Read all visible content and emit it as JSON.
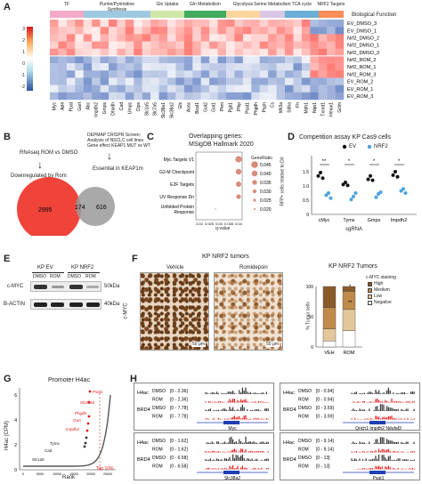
{
  "panels": {
    "a": "A",
    "b": "B",
    "c": "C",
    "d": "D",
    "e": "E",
    "f": "F",
    "g": "G",
    "h": "H"
  },
  "panelA": {
    "categories": [
      {
        "label": "TF",
        "color": "#f4a9c8"
      },
      {
        "label": "Purine/Pyrimidine Synthesis",
        "color": "#9ecae1"
      },
      {
        "label": "Gln Uptake",
        "color": "#cfe8a5"
      },
      {
        "label": "Gln Metabolism",
        "color": "#41ab5d"
      },
      {
        "label": "Glycolysis",
        "color": "#fdd49e"
      },
      {
        "label": "Serine Metabolism",
        "color": "#d9c5e6"
      },
      {
        "label": "TCA cycle",
        "color": "#6baed6"
      },
      {
        "label": "NRF2 Targets",
        "color": "#fc8d59"
      }
    ],
    "function_label": "Biological Function",
    "colorbar_ticks": [
      "3",
      "2",
      "1",
      "0",
      "-1",
      "-2"
    ],
    "rows": [
      "EV_DMSO_3",
      "EV_DMSO_1",
      "Nrf2_DMSO_2",
      "Nrf2_DMSO_1",
      "Nrf2_DMSO_3",
      "Nrf2_ROM_2",
      "Nrf2_ROM_1",
      "Nrf2_ROM_3",
      "EV_ROM_2",
      "EV_ROM_1",
      "EV_ROM_3"
    ],
    "genes": [
      "Myc",
      "Atf4",
      "Ppat",
      "Gart",
      "Atic",
      "Impdh2",
      "Gmps",
      "Dhodh",
      "Cad",
      "Umps",
      "Ctps",
      "Slc1a5",
      "Slc7a5",
      "Slc38a1",
      "Slc38a2",
      "Gls",
      "Asns",
      "Bcat1",
      "Got2",
      "Got1",
      "Pkm",
      "Pgk1",
      "Pfkp",
      "Psat1",
      "Phgdh",
      "Psph",
      "Cs",
      "Idh3a",
      "Sdha",
      "Fh",
      "Mdh1",
      "Nqo1",
      "Txnrd1",
      "Hmox1",
      "Gclm"
    ],
    "col_count": 35
  },
  "panelB": {
    "left_text": "RNAseq ROM vs DMSO",
    "left_sub": "Downregulated by Rom",
    "right_text_1": "DEPMAP CRISPR Screen:",
    "right_text_2": "Analysis of NSCLC cell lines",
    "right_text_3": "Gene effect KEAP1 MUT vs WT",
    "right_sub": "Essential in KEAP1m",
    "n_left": "2995",
    "n_overlap": "174",
    "n_right": "616"
  },
  "panelC": {
    "title_1": "Overlapping genes:",
    "title_2": "MSigDB Hallmark 2020",
    "xlabel": "q-value",
    "legend_title": "GeneRatio",
    "legend_values": [
      "0.045",
      "0.040",
      "0.035",
      "0.030",
      "0.025",
      "0.020"
    ]
  },
  "panelD": {
    "title": "Competition assay KP Cas9 cells",
    "ylabel": "RFP+ cells relative to D0",
    "xlabel": "sgRNA",
    "legend_ev": "EV",
    "legend_nrf2": "NRF2",
    "sig": [
      "**",
      "*",
      "*",
      "*"
    ]
  },
  "panelE": {
    "group_ev": "KP EV",
    "group_nrf2": "KP NRF2",
    "lanes": [
      "DMSO",
      "ROM",
      "DMSO",
      "ROM"
    ],
    "rows": [
      {
        "label": "c-MYC",
        "kda": "50kDa"
      },
      {
        "label": "B-ACTIN",
        "kda": "40kDa"
      }
    ]
  },
  "panelF": {
    "title": "KP NRF2 tumors",
    "vehicle": "Vehicle",
    "romidepsin": "Romidepsin",
    "side_label": "c-MYC",
    "scale": "50 μm",
    "chart_title": "KP NRF2 Tumors",
    "legend_title": "c-MYC staining",
    "legend": [
      {
        "label": "High",
        "color": "#8b5a2b"
      },
      {
        "label": "Medium",
        "color": "#c08a4a"
      },
      {
        "label": "Low",
        "color": "#e3c79a"
      },
      {
        "label": "Negative",
        "color": "#ffffff"
      }
    ],
    "ylabel": "% Tumor cells",
    "sig": [
      "*",
      "**"
    ]
  },
  "panelG": {
    "title": "Promoter H4ac",
    "ylabel": "H4ac (CPM)",
    "xlabel": "Rank",
    "top_label": "Top 10%",
    "gene_labels": [
      "Psat1",
      "Slc38a2",
      "Phgdh",
      "Gart",
      "Impdh2",
      "Tyms",
      "Cad",
      "Slc1a5"
    ]
  },
  "panelH": {
    "blocks": [
      {
        "gene": "Myc",
        "ranges": [
          "[0 - 2.36]",
          "[0 - 2.36]",
          "[0 - 7.78]",
          "[0 - 7.78]"
        ]
      },
      {
        "gene": "Qrich1   Impdh2   Ndufaf3",
        "ranges": [
          "[0 - 0.94]",
          "[0 - 0.94]",
          "[0 - 3.59]",
          "[0 - 3.59]"
        ]
      },
      {
        "gene": "Slc38a2",
        "ranges": [
          "[0 - 1.62]",
          "[0 - 1.62]",
          "[0 - 6.58]",
          "[0 - 6.58]"
        ]
      },
      {
        "gene": "Psat1",
        "ranges": [
          "[0 - 9.14]",
          "[0 - 9.14]",
          "[0 - 13]",
          "[0 - 13]"
        ]
      }
    ],
    "mark_h4": "H4ac",
    "mark_brd4": "BRD4",
    "dmso": "DMSO",
    "rom": "ROM"
  }
}
